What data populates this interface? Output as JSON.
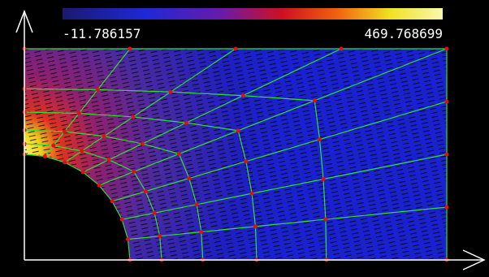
{
  "colorbar": {
    "min_label": "-11.786157",
    "max_label": "469.768699"
  }
}
